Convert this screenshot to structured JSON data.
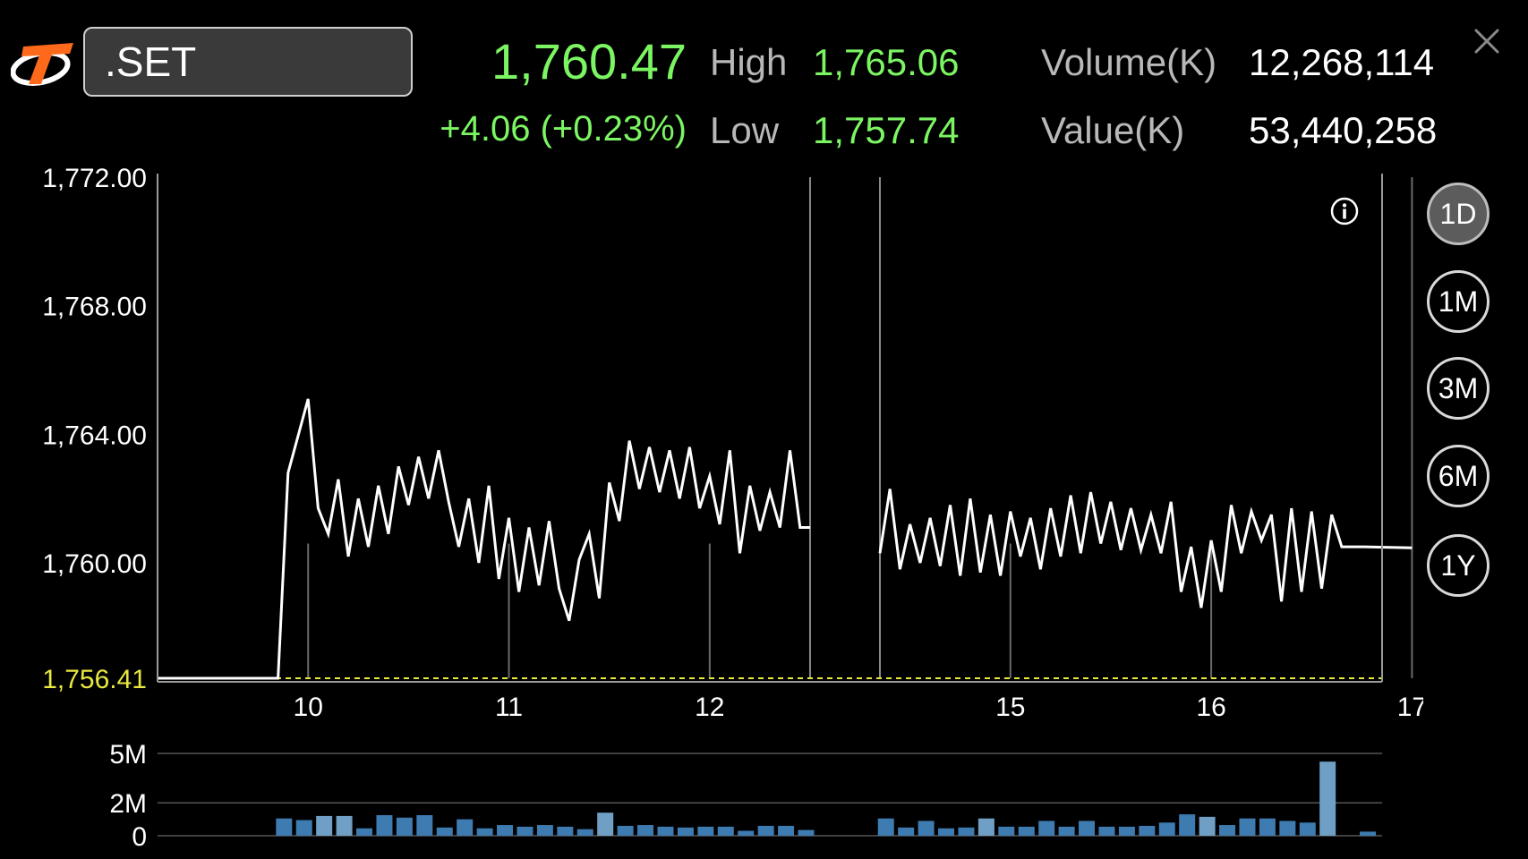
{
  "header": {
    "symbol": ".SET",
    "last_price": "1,760.47",
    "change": "+4.06 (+0.23%)",
    "high_label": "High",
    "high_value": "1,765.06",
    "low_label": "Low",
    "low_value": "1,757.74",
    "volume_label": "Volume(K)",
    "volume_value": "12,268,114",
    "value_label": "Value(K)",
    "value_value": "53,440,258"
  },
  "colors": {
    "up": "#7cf563",
    "reference_line": "#e8e840",
    "price_line": "#ffffff",
    "volume_bar": "#3d7bb0",
    "volume_bar_light": "#6f9fc4"
  },
  "range_buttons": [
    {
      "label": "1D",
      "active": true
    },
    {
      "label": "1M",
      "active": false
    },
    {
      "label": "3M",
      "active": false
    },
    {
      "label": "6M",
      "active": false
    },
    {
      "label": "1Y",
      "active": false
    }
  ],
  "icons": {
    "logo": "brand-logo-icon",
    "close": "close-icon",
    "info": "info-icon"
  },
  "chart_data": {
    "type": "line",
    "y_ticks": [
      "1,772.00",
      "1,768.00",
      "1,764.00",
      "1,760.00"
    ],
    "ylim": [
      1756.41,
      1772.0
    ],
    "reference_value": 1756.41,
    "reference_label": "1,756.41",
    "x_ticks": [
      "10",
      "11",
      "12",
      "15",
      "16",
      "17"
    ],
    "grid": true,
    "series": [
      {
        "points": [
          [
            9.25,
            1756.41
          ],
          [
            9.85,
            1756.41
          ],
          [
            9.9,
            1762.8
          ],
          [
            10.0,
            1765.1
          ],
          [
            10.05,
            1761.7
          ],
          [
            10.1,
            1760.9
          ],
          [
            10.15,
            1762.6
          ],
          [
            10.2,
            1760.2
          ],
          [
            10.25,
            1762.0
          ],
          [
            10.3,
            1760.5
          ],
          [
            10.35,
            1762.4
          ],
          [
            10.4,
            1760.9
          ],
          [
            10.45,
            1763.0
          ],
          [
            10.5,
            1761.8
          ],
          [
            10.55,
            1763.3
          ],
          [
            10.6,
            1762.0
          ],
          [
            10.65,
            1763.5
          ],
          [
            10.7,
            1761.9
          ],
          [
            10.75,
            1760.5
          ],
          [
            10.8,
            1762.0
          ],
          [
            10.85,
            1760.0
          ],
          [
            10.9,
            1762.4
          ],
          [
            10.95,
            1759.5
          ],
          [
            11.0,
            1761.4
          ],
          [
            11.05,
            1759.1
          ],
          [
            11.1,
            1761.1
          ],
          [
            11.15,
            1759.3
          ],
          [
            11.2,
            1761.3
          ],
          [
            11.25,
            1759.2
          ],
          [
            11.3,
            1758.2
          ],
          [
            11.35,
            1760.1
          ],
          [
            11.4,
            1760.9
          ],
          [
            11.45,
            1758.9
          ],
          [
            11.5,
            1762.5
          ],
          [
            11.55,
            1761.3
          ],
          [
            11.6,
            1763.8
          ],
          [
            11.65,
            1762.3
          ],
          [
            11.7,
            1763.6
          ],
          [
            11.75,
            1762.2
          ],
          [
            11.8,
            1763.5
          ],
          [
            11.85,
            1762.0
          ],
          [
            11.9,
            1763.6
          ],
          [
            11.95,
            1761.7
          ],
          [
            12.0,
            1762.7
          ],
          [
            12.05,
            1761.2
          ],
          [
            12.1,
            1763.5
          ],
          [
            12.15,
            1760.3
          ],
          [
            12.2,
            1762.4
          ],
          [
            12.25,
            1761.0
          ],
          [
            12.3,
            1762.2
          ],
          [
            12.35,
            1761.1
          ],
          [
            12.4,
            1763.5
          ],
          [
            12.45,
            1761.1
          ],
          [
            12.5,
            1761.1
          ]
        ]
      },
      {
        "points": [
          [
            14.35,
            1760.3
          ],
          [
            14.4,
            1762.3
          ],
          [
            14.45,
            1759.8
          ],
          [
            14.5,
            1761.2
          ],
          [
            14.55,
            1760.0
          ],
          [
            14.6,
            1761.4
          ],
          [
            14.65,
            1759.9
          ],
          [
            14.7,
            1761.8
          ],
          [
            14.75,
            1759.6
          ],
          [
            14.8,
            1762.0
          ],
          [
            14.85,
            1759.7
          ],
          [
            14.9,
            1761.5
          ],
          [
            14.95,
            1759.6
          ],
          [
            15.0,
            1761.6
          ],
          [
            15.05,
            1760.2
          ],
          [
            15.1,
            1761.4
          ],
          [
            15.15,
            1759.8
          ],
          [
            15.2,
            1761.7
          ],
          [
            15.25,
            1760.2
          ],
          [
            15.3,
            1762.1
          ],
          [
            15.35,
            1760.3
          ],
          [
            15.4,
            1762.2
          ],
          [
            15.45,
            1760.6
          ],
          [
            15.5,
            1761.9
          ],
          [
            15.55,
            1760.4
          ],
          [
            15.6,
            1761.7
          ],
          [
            15.65,
            1760.4
          ],
          [
            15.7,
            1761.5
          ],
          [
            15.75,
            1760.3
          ],
          [
            15.8,
            1761.9
          ],
          [
            15.85,
            1759.1
          ],
          [
            15.9,
            1760.5
          ],
          [
            15.95,
            1758.6
          ],
          [
            16.0,
            1760.7
          ],
          [
            16.05,
            1759.1
          ],
          [
            16.1,
            1761.8
          ],
          [
            16.15,
            1760.3
          ],
          [
            16.2,
            1761.6
          ],
          [
            16.25,
            1760.7
          ],
          [
            16.3,
            1761.5
          ],
          [
            16.35,
            1758.8
          ],
          [
            16.4,
            1761.7
          ],
          [
            16.45,
            1759.1
          ],
          [
            16.5,
            1761.6
          ],
          [
            16.55,
            1759.2
          ],
          [
            16.6,
            1761.5
          ],
          [
            16.65,
            1760.5
          ],
          [
            16.75,
            1760.5
          ],
          [
            17.0,
            1760.47
          ]
        ]
      }
    ],
    "volume": {
      "y_ticks": [
        "5M",
        "2M",
        "0"
      ],
      "ylim": [
        0,
        5000000
      ],
      "bars": [
        [
          9.88,
          1050000
        ],
        [
          9.98,
          950000
        ],
        [
          10.08,
          1200000
        ],
        [
          10.18,
          1200000
        ],
        [
          10.28,
          450000
        ],
        [
          10.38,
          1250000
        ],
        [
          10.48,
          1100000
        ],
        [
          10.58,
          1250000
        ],
        [
          10.68,
          500000
        ],
        [
          10.78,
          1000000
        ],
        [
          10.88,
          450000
        ],
        [
          10.98,
          650000
        ],
        [
          11.08,
          550000
        ],
        [
          11.18,
          650000
        ],
        [
          11.28,
          550000
        ],
        [
          11.38,
          400000
        ],
        [
          11.48,
          1400000
        ],
        [
          11.58,
          600000
        ],
        [
          11.68,
          650000
        ],
        [
          11.78,
          550000
        ],
        [
          11.88,
          500000
        ],
        [
          11.98,
          550000
        ],
        [
          12.08,
          550000
        ],
        [
          12.18,
          300000
        ],
        [
          12.28,
          600000
        ],
        [
          12.38,
          600000
        ],
        [
          12.48,
          350000
        ],
        [
          14.38,
          1050000
        ],
        [
          14.48,
          500000
        ],
        [
          14.58,
          900000
        ],
        [
          14.68,
          450000
        ],
        [
          14.78,
          500000
        ],
        [
          14.88,
          1050000
        ],
        [
          14.98,
          550000
        ],
        [
          15.08,
          550000
        ],
        [
          15.18,
          900000
        ],
        [
          15.28,
          550000
        ],
        [
          15.38,
          900000
        ],
        [
          15.48,
          550000
        ],
        [
          15.58,
          550000
        ],
        [
          15.68,
          600000
        ],
        [
          15.78,
          800000
        ],
        [
          15.88,
          1300000
        ],
        [
          15.98,
          1150000
        ],
        [
          16.08,
          650000
        ],
        [
          16.18,
          1050000
        ],
        [
          16.28,
          1050000
        ],
        [
          16.38,
          900000
        ],
        [
          16.48,
          800000
        ],
        [
          16.58,
          4500000
        ],
        [
          16.78,
          250000
        ]
      ]
    }
  }
}
